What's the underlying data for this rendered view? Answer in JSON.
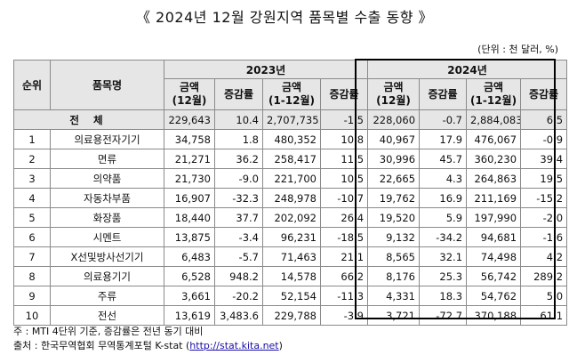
{
  "title": "《 2024년 12월 강원지역 품목별 수출 동향 》",
  "unit": "(단위 : 천 달러, %)",
  "headers": {
    "rank": "순위",
    "item": "품목명",
    "year_2023": "2023년",
    "year_2024": "2024년",
    "amount_dec_line1": "금액",
    "amount_dec_line2": "(12월)",
    "change": "증감률",
    "amount_cum_line1": "금액",
    "amount_cum_line2": "(1-12월)"
  },
  "rows": [
    {
      "rank": "",
      "item": "전 체",
      "a23m": "229,643",
      "c23m": "10.4",
      "a23y": "2,707,735",
      "c23y": "-1.5",
      "a24m": "228,060",
      "c24m": "-0.7",
      "a24y": "2,884,083",
      "c24y": "6.5"
    },
    {
      "rank": "1",
      "item": "의료용전자기기",
      "a23m": "34,758",
      "c23m": "1.8",
      "a23y": "480,352",
      "c23y": "10.8",
      "a24m": "40,967",
      "c24m": "17.9",
      "a24y": "476,067",
      "c24y": "-0.9"
    },
    {
      "rank": "2",
      "item": "면류",
      "a23m": "21,271",
      "c23m": "36.2",
      "a23y": "258,417",
      "c23y": "11.5",
      "a24m": "30,996",
      "c24m": "45.7",
      "a24y": "360,230",
      "c24y": "39.4"
    },
    {
      "rank": "3",
      "item": "의약품",
      "a23m": "21,730",
      "c23m": "-9.0",
      "a23y": "221,700",
      "c23y": "10.5",
      "a24m": "22,665",
      "c24m": "4.3",
      "a24y": "264,863",
      "c24y": "19.5"
    },
    {
      "rank": "4",
      "item": "자동차부품",
      "a23m": "16,907",
      "c23m": "-32.3",
      "a23y": "248,978",
      "c23y": "-10.7",
      "a24m": "19,762",
      "c24m": "16.9",
      "a24y": "211,169",
      "c24y": "-15.2"
    },
    {
      "rank": "5",
      "item": "화장품",
      "a23m": "18,440",
      "c23m": "37.7",
      "a23y": "202,092",
      "c23y": "26.4",
      "a24m": "19,520",
      "c24m": "5.9",
      "a24y": "197,990",
      "c24y": "-2.0"
    },
    {
      "rank": "6",
      "item": "시멘트",
      "a23m": "13,875",
      "c23m": "-3.4",
      "a23y": "96,231",
      "c23y": "-18.5",
      "a24m": "9,132",
      "c24m": "-34.2",
      "a24y": "94,681",
      "c24y": "-1.6"
    },
    {
      "rank": "7",
      "item": "X선및방사선기기",
      "a23m": "6,483",
      "c23m": "-5.7",
      "a23y": "71,463",
      "c23y": "21.1",
      "a24m": "8,565",
      "c24m": "32.1",
      "a24y": "74,498",
      "c24y": "4.2"
    },
    {
      "rank": "8",
      "item": "의료용기기",
      "a23m": "6,528",
      "c23m": "948.2",
      "a23y": "14,578",
      "c23y": "66.2",
      "a24m": "8,176",
      "c24m": "25.3",
      "a24y": "56,742",
      "c24y": "289.2"
    },
    {
      "rank": "9",
      "item": "주류",
      "a23m": "3,661",
      "c23m": "-20.2",
      "a23y": "52,154",
      "c23y": "-11.3",
      "a24m": "4,331",
      "c24m": "18.3",
      "a24y": "54,762",
      "c24y": "5.0"
    },
    {
      "rank": "10",
      "item": "전선",
      "a23m": "13,619",
      "c23m": "3,483.6",
      "a23y": "229,788",
      "c23y": "-3.9",
      "a24m": "3,721",
      "c24m": "-72.7",
      "a24y": "370,188",
      "c24y": "61.1"
    }
  ],
  "notes": {
    "note1": "주 : MTI 4단위 기준, 증감률은 전년 동기 대비",
    "source_prefix": "출처 : 한국무역협회 무역통계포털 K-stat (",
    "source_link": "http://stat.kita.net",
    "source_suffix": ")"
  }
}
